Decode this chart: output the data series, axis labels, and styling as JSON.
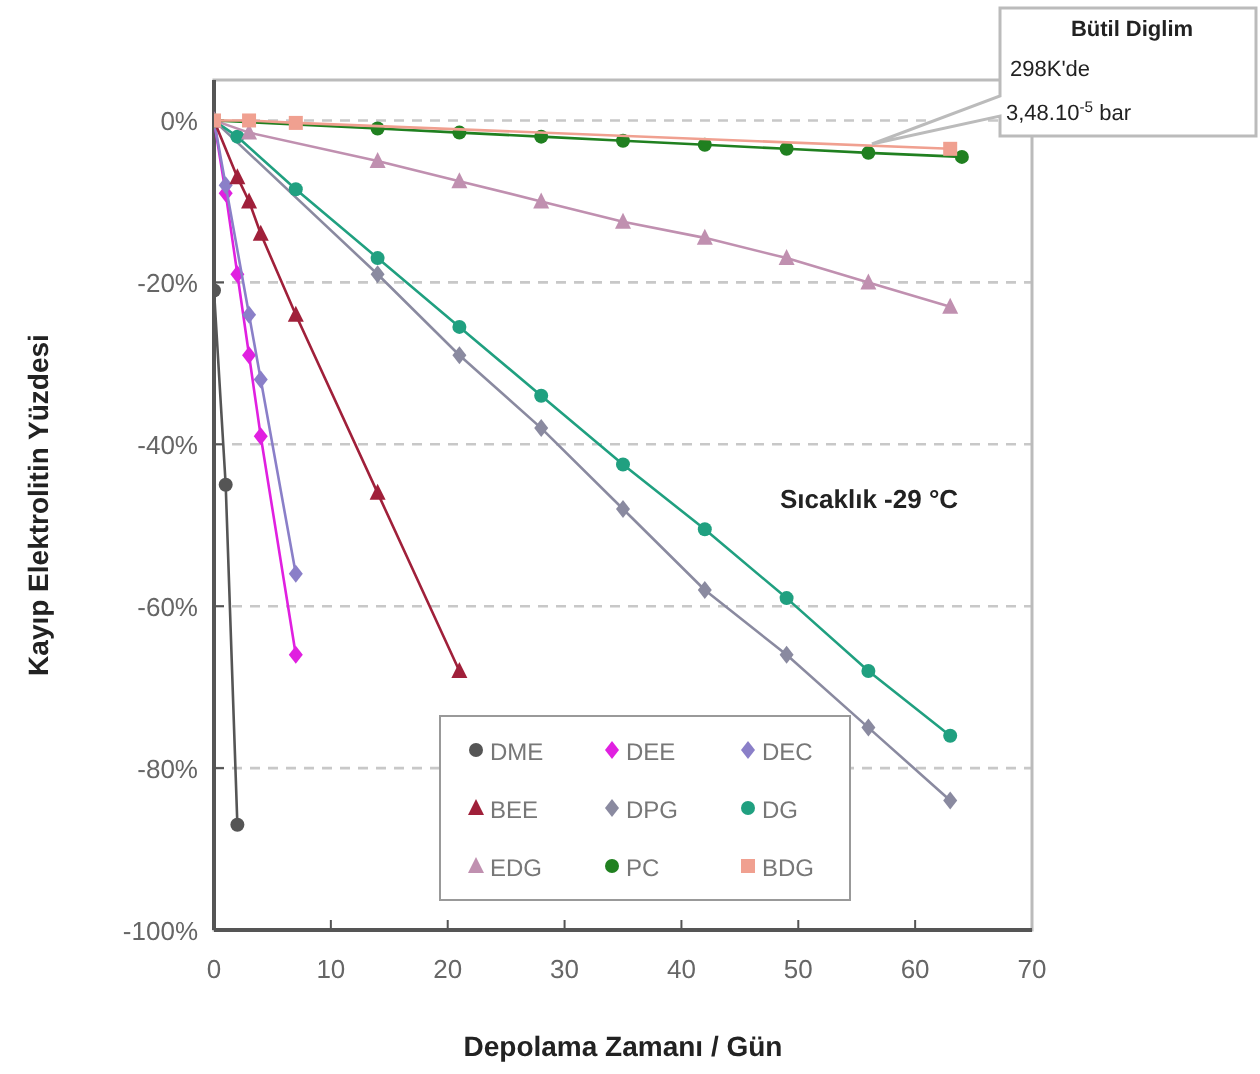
{
  "chart_data": {
    "type": "line",
    "xlabel": "Depolama Zamanı / Gün",
    "ylabel": "Kayıp Elektrolitin Yüzdesi",
    "xlim": [
      0,
      70
    ],
    "xticks": [
      0,
      10,
      20,
      30,
      40,
      50,
      60,
      70
    ],
    "ylim": [
      -100,
      5
    ],
    "yticks": [
      {
        "value": -100,
        "label": "-100%"
      },
      {
        "value": -80,
        "label": "-80%"
      },
      {
        "value": -60,
        "label": "-60%"
      },
      {
        "value": -40,
        "label": "-40%"
      },
      {
        "value": -20,
        "label": "-20%"
      },
      {
        "value": 0,
        "label": "0%"
      }
    ],
    "grid": "y",
    "legend": "bottom",
    "series": [
      {
        "name": "DME",
        "color": "#555555",
        "marker": "circle",
        "x": [
          0,
          0,
          1,
          2
        ],
        "values": [
          0,
          -21,
          -45,
          -87
        ]
      },
      {
        "name": "DEE",
        "color": "#e020e0",
        "marker": "diamond",
        "x": [
          0,
          1,
          2,
          3,
          4,
          7
        ],
        "values": [
          0,
          -9,
          -19,
          -29,
          -39,
          -66
        ]
      },
      {
        "name": "DEC",
        "color": "#8a7fc8",
        "marker": "diamond",
        "x": [
          0,
          1,
          3,
          4,
          7
        ],
        "values": [
          0,
          -8,
          -24,
          -32,
          -56
        ]
      },
      {
        "name": "BEE",
        "color": "#a0203a",
        "marker": "triangle",
        "x": [
          0,
          2,
          3,
          4,
          7,
          14,
          21
        ],
        "values": [
          0,
          -7,
          -10,
          -14,
          -24,
          -46,
          -68
        ]
      },
      {
        "name": "DPG",
        "color": "#8a8aa0",
        "marker": "diamond",
        "x": [
          0,
          7,
          14,
          21,
          28,
          35,
          42,
          49,
          56,
          63
        ],
        "values": [
          0,
          null,
          -19,
          -29,
          -38,
          -48,
          -58,
          -66,
          -75,
          -84
        ]
      },
      {
        "name": "DG",
        "color": "#20a080",
        "marker": "circle",
        "x": [
          0,
          2,
          7,
          14,
          21,
          28,
          35,
          42,
          49,
          56,
          63
        ],
        "values": [
          0,
          -2,
          -8.5,
          -17,
          -25.5,
          -34,
          -42.5,
          -50.5,
          -59,
          -68,
          -76
        ]
      },
      {
        "name": "EDG",
        "color": "#c090b0",
        "marker": "triangle",
        "x": [
          0,
          3,
          14,
          21,
          28,
          35,
          42,
          49,
          56,
          63
        ],
        "values": [
          0,
          -1.5,
          -5,
          -7.5,
          -10,
          -12.5,
          -14.5,
          -17,
          -20,
          -23
        ]
      },
      {
        "name": "PC",
        "color": "#208020",
        "marker": "circle",
        "x": [
          0,
          7,
          14,
          21,
          28,
          35,
          42,
          49,
          56,
          64
        ],
        "values": [
          0,
          null,
          -1,
          -1.5,
          -2,
          -2.5,
          -3,
          -3.5,
          -4,
          -4.5
        ]
      },
      {
        "name": "BDG",
        "color": "#f0a090",
        "marker": "square",
        "x": [
          0,
          3,
          7,
          63
        ],
        "values": [
          0,
          0,
          -0.3,
          -3.5
        ]
      }
    ],
    "annotations": [
      "Bütil Diglim",
      "298K'de",
      "3,48.10$^{-5}$ bar",
      "Sıcaklık -29 °C"
    ]
  }
}
